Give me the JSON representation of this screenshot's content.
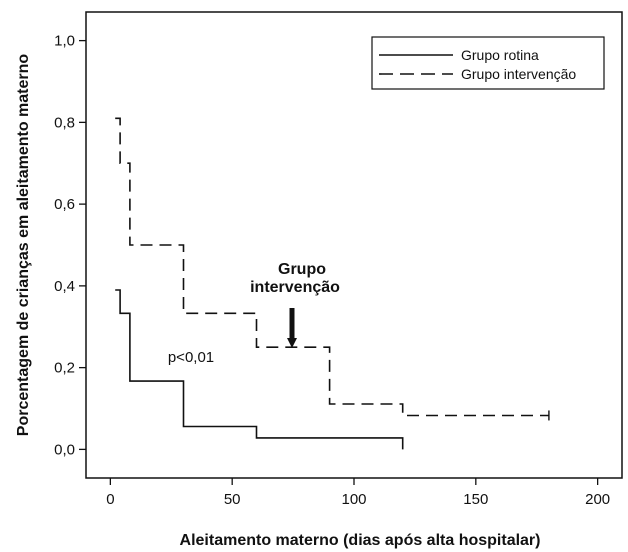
{
  "chart_data": {
    "type": "line",
    "subtype": "step",
    "xlabel": "Aleitamento materno (dias após alta hospitalar)",
    "ylabel": "Porcentagem de crianças em aleitamento materno",
    "xlim": [
      -10,
      210
    ],
    "ylim": [
      -0.07,
      1.07
    ],
    "x_ticks": [
      0,
      50,
      100,
      150,
      200
    ],
    "x_tick_labels": [
      "0",
      "50",
      "100",
      "150",
      "200"
    ],
    "y_ticks": [
      0.0,
      0.2,
      0.4,
      0.6,
      0.8,
      1.0
    ],
    "y_tick_labels": [
      "0,0",
      "0,2",
      "0,4",
      "0,6",
      "0,8",
      "1,0"
    ],
    "grid": false,
    "legend_position": "top-right",
    "series": [
      {
        "name": "Grupo rotina",
        "style": "solid",
        "points": [
          [
            2,
            0.39
          ],
          [
            4,
            0.39
          ],
          [
            4,
            0.333
          ],
          [
            8,
            0.333
          ],
          [
            8,
            0.167
          ],
          [
            30,
            0.167
          ],
          [
            30,
            0.056
          ],
          [
            60,
            0.056
          ],
          [
            60,
            0.028
          ],
          [
            120,
            0.028
          ],
          [
            120,
            0.0
          ]
        ]
      },
      {
        "name": "Grupo intervenção",
        "style": "dashed",
        "points": [
          [
            2,
            0.81
          ],
          [
            4,
            0.81
          ],
          [
            4,
            0.7
          ],
          [
            8,
            0.7
          ],
          [
            8,
            0.5
          ],
          [
            30,
            0.5
          ],
          [
            30,
            0.333
          ],
          [
            60,
            0.333
          ],
          [
            60,
            0.25
          ],
          [
            90,
            0.25
          ],
          [
            90,
            0.111
          ],
          [
            120,
            0.111
          ],
          [
            120,
            0.083
          ],
          [
            180,
            0.083
          ]
        ],
        "censor_marks": [
          [
            180,
            0.083
          ]
        ]
      }
    ],
    "annotations": [
      {
        "text_lines": [
          "Grupo",
          "intervenção"
        ],
        "bold": true,
        "arrow_to": [
          74,
          0.255
        ],
        "text_at": [
          74,
          0.42
        ]
      },
      {
        "text": "p<0,01",
        "at": [
          33,
          0.235
        ]
      }
    ]
  }
}
